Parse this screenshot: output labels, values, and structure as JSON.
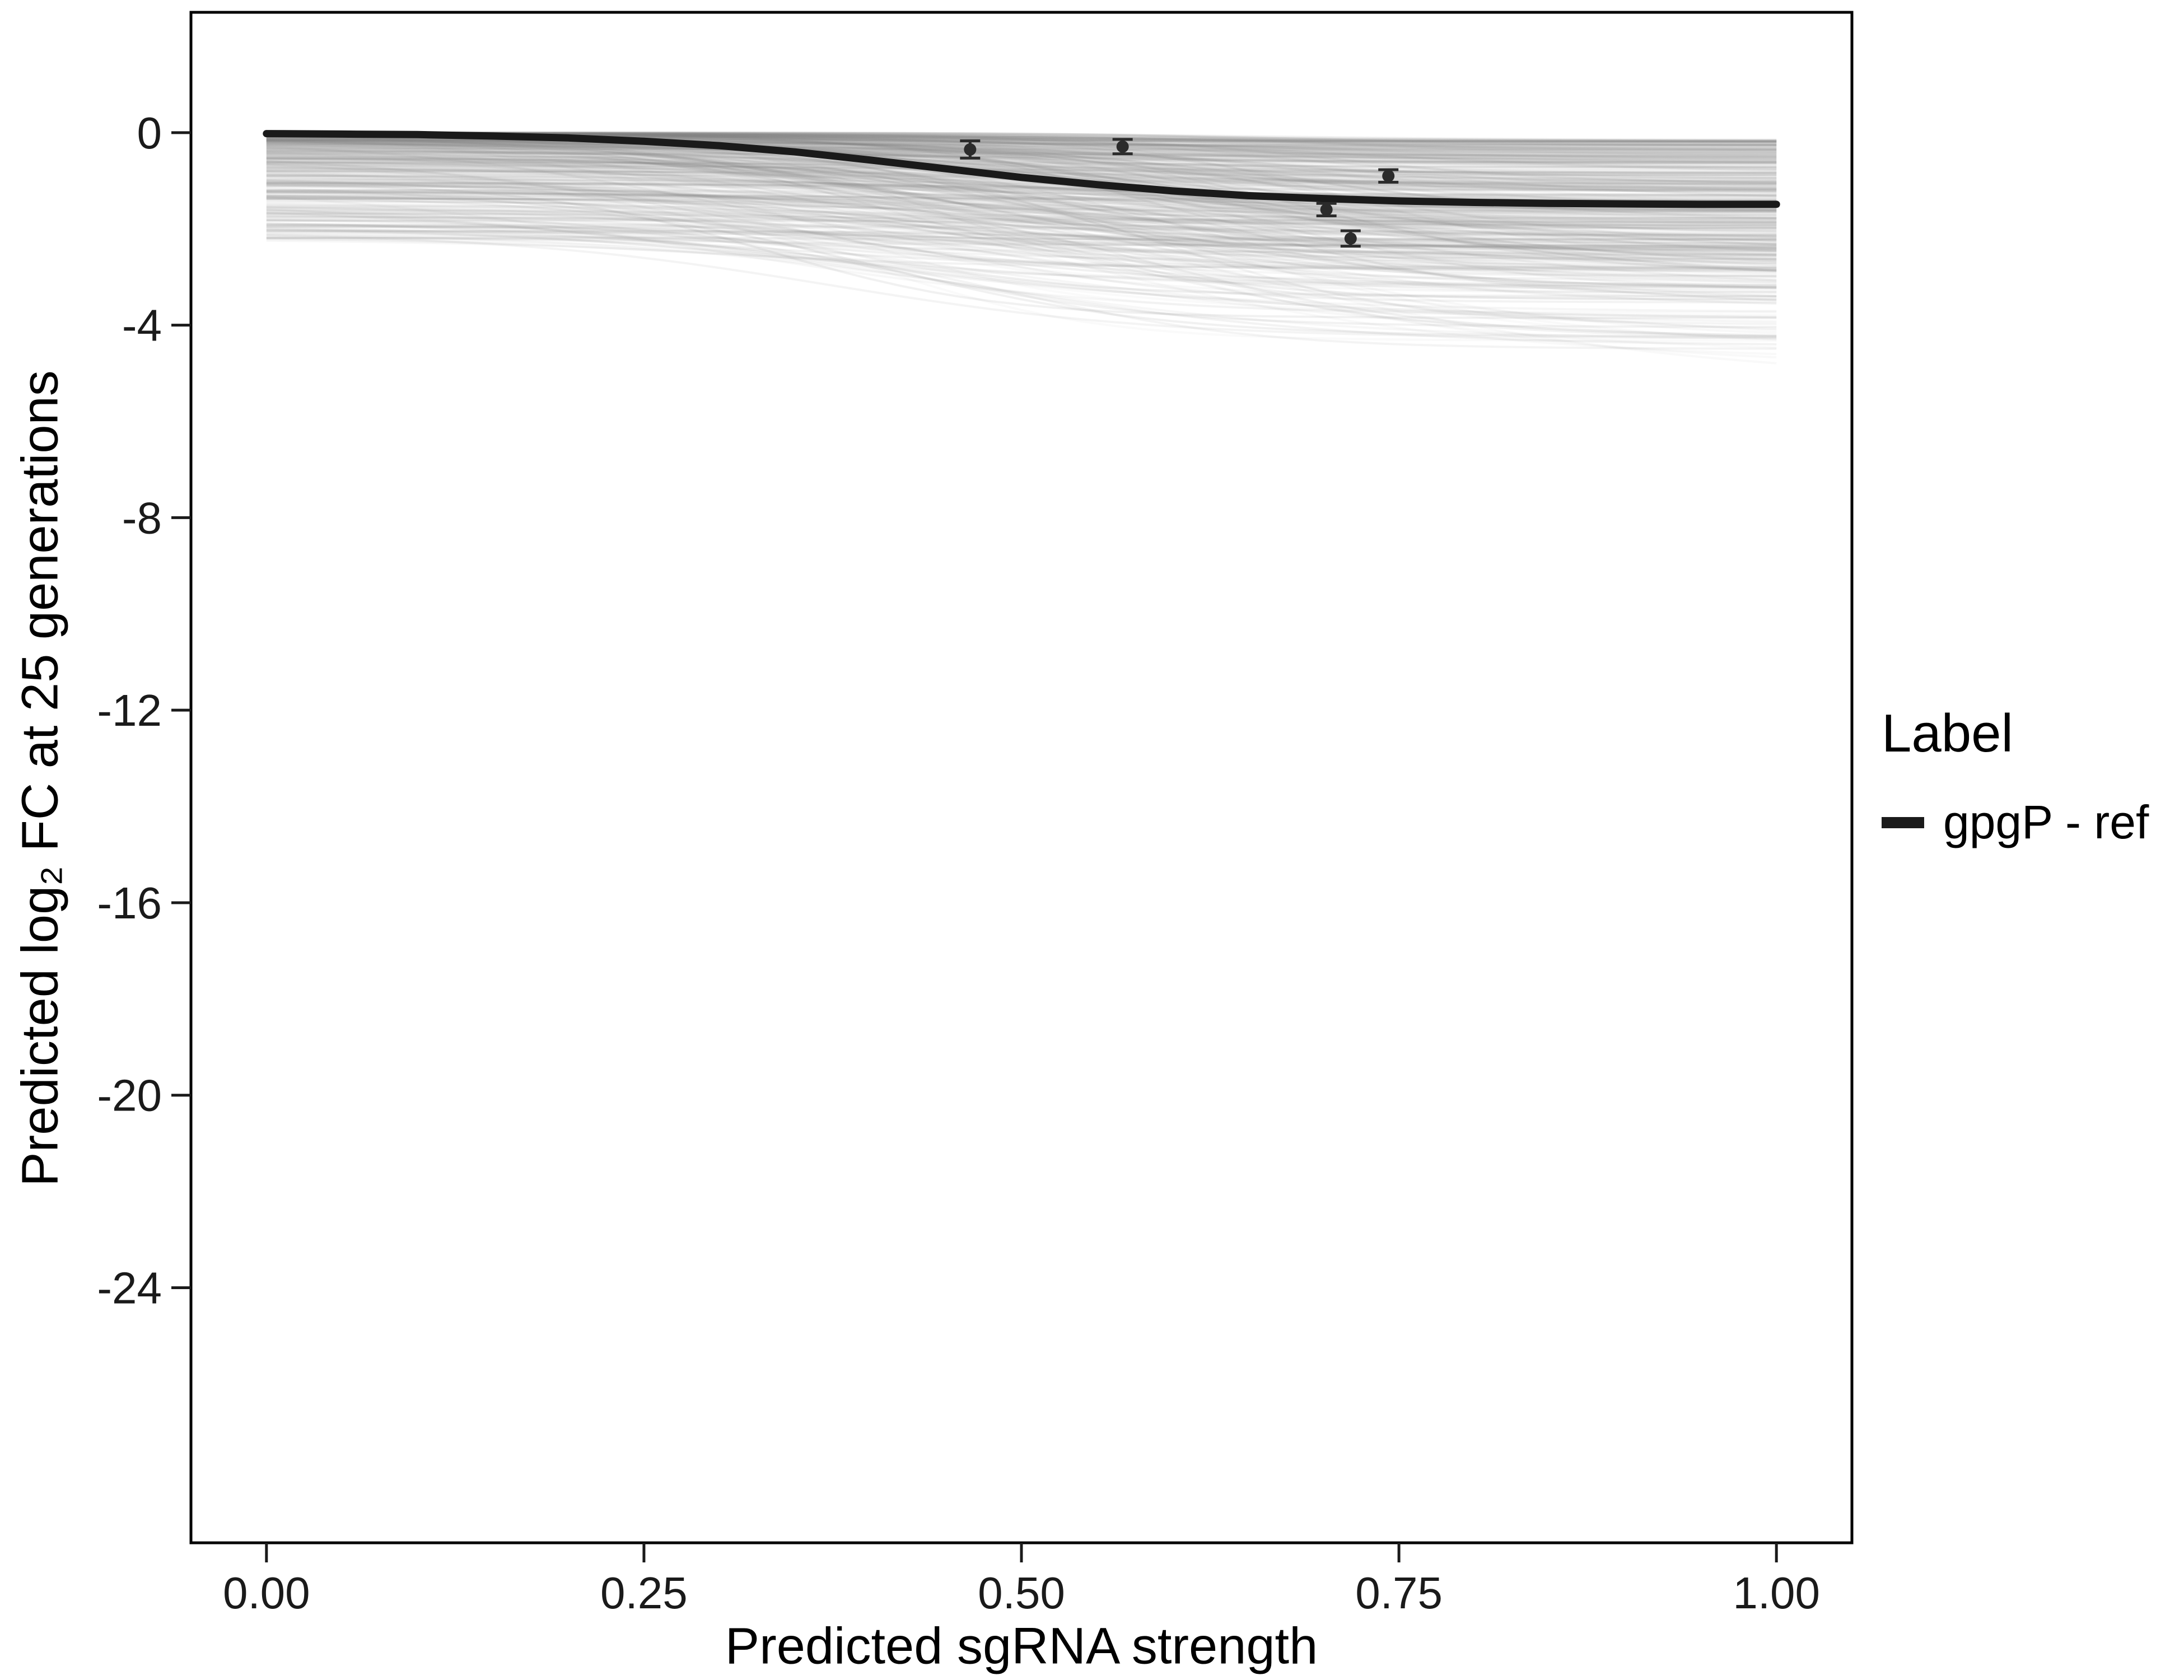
{
  "figure": {
    "background": "#ffffff"
  },
  "chart_data": {
    "type": "line",
    "title": "",
    "xlabel": "Predicted sgRNA strength",
    "ylabel": "Predicted log₂ FC at 25 generations",
    "xlim": [
      -0.05,
      1.05
    ],
    "ylim": [
      -29.3,
      2.5
    ],
    "grid": "off",
    "x_ticks": {
      "values": [
        0,
        0.25,
        0.5,
        0.75,
        1.0
      ],
      "labels": [
        "0.00",
        "0.25",
        "0.50",
        "0.75",
        "1.00"
      ]
    },
    "y_ticks": {
      "values": [
        0,
        -4,
        -8,
        -12,
        -16,
        -20,
        -24
      ],
      "labels": [
        "0",
        "-4",
        "-8",
        "-12",
        "-16",
        "-20",
        "-24"
      ]
    },
    "legend": {
      "title": "Label",
      "position": "right",
      "entries": [
        {
          "label": "gpgP - ref",
          "color": "#1a1a1a",
          "type": "line"
        }
      ]
    },
    "series": [
      {
        "name": "gpgP - ref",
        "color": "#1a1a1a",
        "width": 13,
        "x": [
          0,
          0.05,
          0.1,
          0.15,
          0.2,
          0.25,
          0.3,
          0.35,
          0.4,
          0.45,
          0.5,
          0.55,
          0.6,
          0.65,
          0.7,
          0.75,
          0.8,
          0.85,
          0.9,
          0.95,
          1.0
        ],
        "y": [
          -0.02,
          -0.03,
          -0.04,
          -0.07,
          -0.11,
          -0.18,
          -0.27,
          -0.4,
          -0.57,
          -0.75,
          -0.93,
          -1.08,
          -1.21,
          -1.31,
          -1.37,
          -1.42,
          -1.45,
          -1.47,
          -1.48,
          -1.49,
          -1.49
        ]
      }
    ],
    "points": [
      {
        "x": 0.466,
        "y": -0.35,
        "err": 0.18
      },
      {
        "x": 0.567,
        "y": -0.29,
        "err": 0.15
      },
      {
        "x": 0.702,
        "y": -1.6,
        "err": 0.13
      },
      {
        "x": 0.718,
        "y": -2.2,
        "err": 0.16
      },
      {
        "x": 0.743,
        "y": -0.9,
        "err": 0.13
      }
    ],
    "ensemble": {
      "description": "posterior draw curves band",
      "count": 420,
      "deep_outliers": 6,
      "seed": 12,
      "color": "#808080",
      "opacity_range": [
        0.04,
        0.12
      ],
      "start_range": [
        0,
        -2.2
      ],
      "final_range": [
        -0.3,
        -5.3
      ],
      "x_span": [
        0,
        1
      ]
    }
  }
}
